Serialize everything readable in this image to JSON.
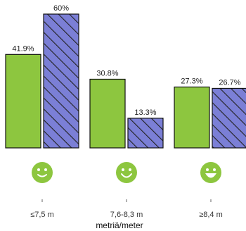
{
  "chart_data": {
    "type": "bar",
    "categories": [
      "≤7,5 m",
      "7,6-8,3 m",
      "≥8,4 m"
    ],
    "series": [
      {
        "values": [
          41.9,
          30.8,
          27.3
        ],
        "labels": [
          "41.9%",
          "30.8%",
          "27.3%"
        ],
        "color": "#8dc63f",
        "pattern": "solid"
      },
      {
        "values": [
          60,
          13.3,
          26.7
        ],
        "labels": [
          "60%",
          "13.3%",
          "26.7%"
        ],
        "color": "#7b7fd6",
        "pattern": "diagonal-hatch"
      }
    ],
    "icons": [
      "smiley-icon-small",
      "smiley-icon-medium",
      "smiley-icon-big"
    ],
    "icon_color": "#8dc63f",
    "xlabel": "metriä/meter",
    "ylim": [
      0,
      60
    ],
    "grid": false,
    "legend": "none"
  }
}
